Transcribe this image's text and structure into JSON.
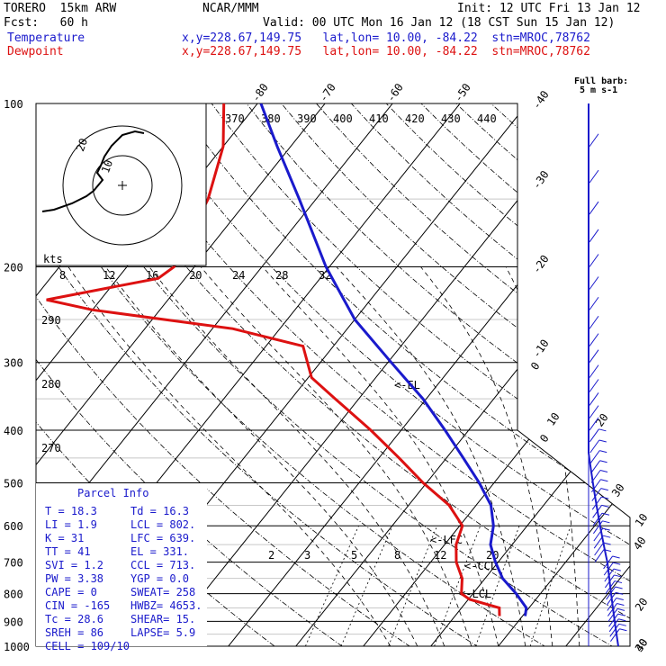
{
  "header": {
    "model": "TORERO  15km ARW",
    "center": "NCAR/MMM",
    "init": "Init: 12 UTC Fri 13 Jan 12",
    "fcst": "Fcst:   60 h",
    "valid": "Valid: 00 UTC Mon 16 Jan 12 (18 CST Sun 15 Jan 12)",
    "temp_label": "Temperature",
    "dew_label": "Dewpoint",
    "temp_loc": "x,y=228.67,149.75   lat,lon= 10.00, -84.22  stn=MROC,78762",
    "dew_loc": "x,y=228.67,149.75   lat,lon= 10.00, -84.22  stn=MROC,78762"
  },
  "barb_legend": {
    "line1": "Full barb:",
    "line2": "5 m s-1"
  },
  "hodograph": {
    "units": "kts",
    "ring_labels": [
      "20",
      "10"
    ]
  },
  "parcel_info": {
    "title": "Parcel Info",
    "rows": [
      [
        "T    =   18.3",
        "Td =  16.3"
      ],
      [
        "LI   =    1.9",
        "LCL =  802."
      ],
      [
        "K    =     31",
        "LFC =  639."
      ],
      [
        "TT   =     41",
        "EL  =  331."
      ],
      [
        "SVI  =    1.2",
        "CCL =  713."
      ],
      [
        "PW   =   3.38",
        "YGP =   0.0"
      ],
      [
        "CAPE =      0",
        "SWEAT=  258"
      ],
      [
        "CIN  =   -165",
        "HWBZ= 4653."
      ],
      [
        "Tc   =   28.6",
        "SHEAR=   15."
      ],
      [
        "SREH =     86",
        "LAPSE=   5.9"
      ],
      [
        "CELL = 109/10",
        ""
      ]
    ]
  },
  "chart_data": {
    "type": "line",
    "subtype": "skew-T log-P sounding",
    "pressure_levels_hPa": [
      100,
      200,
      300,
      400,
      500,
      600,
      700,
      800,
      900,
      1000
    ],
    "isotherm_labels_C": [
      "-80",
      "-70",
      "-60",
      "-50",
      "-40",
      "-30",
      "-20",
      "-10",
      "0",
      "10",
      "20",
      "30",
      "40"
    ],
    "theta_labels_K": [
      "370",
      "380",
      "390",
      "400",
      "410",
      "420",
      "430",
      "440"
    ],
    "dry_adiabat_labels_K": [
      "290",
      "280",
      "270"
    ],
    "mixing_ratio_labels": [
      "2",
      "3",
      "5",
      "8",
      "12",
      "20"
    ],
    "inner_axis_labels": [
      "8",
      "12",
      "16",
      "20",
      "24",
      "28",
      "32"
    ],
    "level_markers": [
      "EL",
      "LFC",
      "CCL",
      "LCL"
    ],
    "series": [
      {
        "name": "Temperature",
        "color": "#1a1acc",
        "points_hPa_C": [
          [
            880,
            20.4
          ],
          [
            850,
            19.6
          ],
          [
            800,
            16.4
          ],
          [
            750,
            12.6
          ],
          [
            700,
            9.6
          ],
          [
            650,
            6.8
          ],
          [
            600,
            5.0
          ],
          [
            550,
            2.2
          ],
          [
            500,
            -2.2
          ],
          [
            450,
            -7.5
          ],
          [
            400,
            -13.5
          ],
          [
            350,
            -20.5
          ],
          [
            300,
            -29.5
          ],
          [
            250,
            -40.0
          ],
          [
            200,
            -50.5
          ],
          [
            150,
            -62.5
          ],
          [
            120,
            -72.0
          ],
          [
            100,
            -79.5
          ]
        ]
      },
      {
        "name": "Dewpoint",
        "color": "#dd1111",
        "points_hPa_C": [
          [
            880,
            16.6
          ],
          [
            850,
            15.6
          ],
          [
            820,
            10.2
          ],
          [
            800,
            8.3
          ],
          [
            750,
            6.6
          ],
          [
            700,
            3.8
          ],
          [
            650,
            1.7
          ],
          [
            600,
            0.4
          ],
          [
            550,
            -4.0
          ],
          [
            500,
            -10.5
          ],
          [
            450,
            -17.0
          ],
          [
            400,
            -24.5
          ],
          [
            350,
            -33.5
          ],
          [
            320,
            -39.5
          ],
          [
            280,
            -44.5
          ],
          [
            260,
            -57.0
          ],
          [
            240,
            -80.0
          ],
          [
            230,
            -88.0
          ],
          [
            210,
            -74.0
          ],
          [
            200,
            -73.0
          ],
          [
            150,
            -76.0
          ],
          [
            120,
            -80.0
          ],
          [
            100,
            -85.0
          ]
        ]
      }
    ],
    "wind_speed_axis_labels": [
      "0",
      "10",
      "20",
      "30",
      "40"
    ]
  }
}
